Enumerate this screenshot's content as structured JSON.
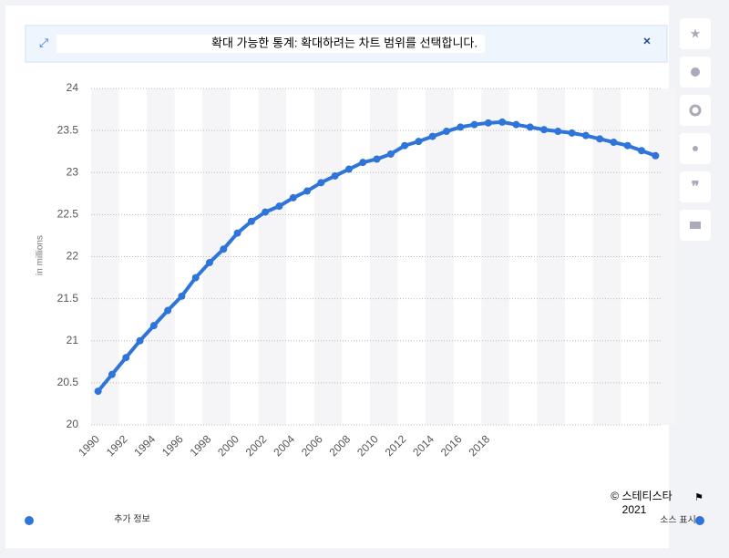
{
  "banner": "확대 가능한 통계: 확대하려는 차트 범위를 선택합니다.",
  "footer": {
    "copyright": "© 스테티스타",
    "year": "2021",
    "more_info": "추가 정보",
    "source": "소스 표시"
  },
  "chart_data": {
    "type": "line",
    "y_label": "in millions",
    "categories": [
      "1990",
      null,
      "1992",
      null,
      "1994",
      null,
      "1996",
      null,
      "1998",
      null,
      "2000",
      null,
      "2002",
      null,
      "2004",
      null,
      "2006",
      null,
      "2008",
      null,
      "2010",
      null,
      "2012",
      null,
      "2014",
      null,
      "2016",
      null,
      "2018",
      null,
      null,
      null,
      null,
      null,
      null,
      null,
      null,
      null,
      null,
      null,
      null
    ],
    "series": [
      {
        "name": "in millions",
        "color": "#2f74d9",
        "values": [
          20.4,
          20.6,
          20.8,
          21.0,
          21.18,
          21.36,
          21.53,
          21.75,
          21.93,
          22.09,
          22.28,
          22.42,
          22.53,
          22.6,
          22.7,
          22.78,
          22.88,
          22.96,
          23.04,
          23.12,
          23.16,
          23.22,
          23.32,
          23.37,
          23.43,
          23.49,
          23.54,
          23.57,
          23.59,
          23.6,
          23.57,
          23.54,
          23.51,
          23.49,
          23.47,
          23.44,
          23.4,
          23.36,
          23.32,
          23.26,
          23.2
        ]
      }
    ],
    "ylim": [
      20,
      24
    ],
    "yticks": [
      20,
      20.5,
      21,
      21.5,
      22,
      22.5,
      23,
      23.5,
      24
    ],
    "grid": true
  }
}
